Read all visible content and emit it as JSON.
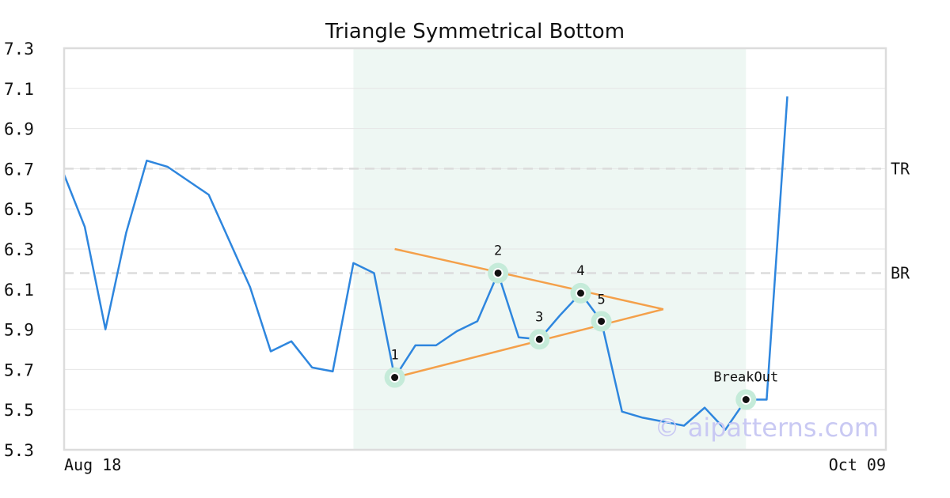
{
  "chart_data": {
    "type": "line",
    "title": "Triangle Symmetrical Bottom",
    "xlabel": "",
    "ylabel": "",
    "ylim": [
      5.3,
      7.3
    ],
    "yticks": [
      "5.3",
      "5.5",
      "5.7",
      "5.9",
      "6.1",
      "6.3",
      "6.5",
      "6.7",
      "6.9",
      "7.1",
      "7.3"
    ],
    "xtick_labels": [
      "Aug 18",
      "Oct 09"
    ],
    "grid": true,
    "legend": "none",
    "series": [
      {
        "values": [
          6.67,
          6.41,
          5.9,
          6.38,
          6.74,
          6.71,
          6.64,
          6.57,
          6.34,
          6.11,
          5.79,
          5.84,
          5.71,
          5.69,
          6.23,
          6.18,
          5.66,
          5.82,
          5.82,
          5.89,
          5.94,
          6.18,
          5.86,
          5.85,
          5.97,
          6.08,
          5.94,
          5.49,
          5.46,
          5.44,
          5.42,
          5.51,
          5.4,
          5.55,
          5.55,
          7.06
        ],
        "color": "#2e86de"
      }
    ],
    "pattern_zone": {
      "start_index": 14,
      "end_index": 33,
      "color": "#eef7f3"
    },
    "reference_lines": [
      {
        "label": "TR",
        "value": 6.7
      },
      {
        "label": "BR",
        "value": 6.18
      }
    ],
    "triangle_lines": [
      {
        "from": {
          "index": 16,
          "value": 6.3
        },
        "to": {
          "index": 29,
          "value": 6.0
        }
      },
      {
        "from": {
          "index": 16,
          "value": 5.66
        },
        "to": {
          "index": 29,
          "value": 6.0
        }
      }
    ],
    "triangle_color": "#f4a04a",
    "key_points": [
      {
        "label": "1",
        "index": 16,
        "value": 5.66
      },
      {
        "label": "2",
        "index": 21,
        "value": 6.18
      },
      {
        "label": "3",
        "index": 23,
        "value": 5.85
      },
      {
        "label": "4",
        "index": 25,
        "value": 6.08
      },
      {
        "label": "5",
        "index": 26,
        "value": 5.94
      },
      {
        "label": "BreakOut",
        "index": 33,
        "value": 5.55
      }
    ],
    "watermark": "© aipatterns.com"
  }
}
